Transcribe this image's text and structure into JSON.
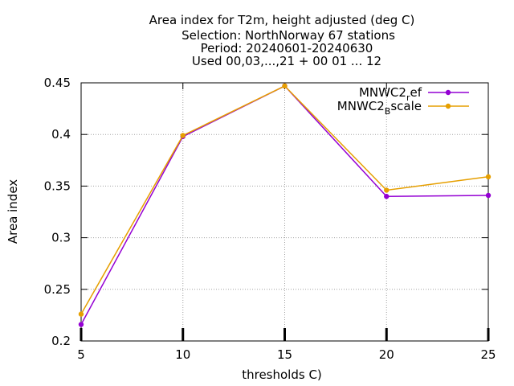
{
  "title_lines": [
    "Area index  for T2m, height adjusted (deg C)",
    "Selection: NorthNorway     67 stations",
    "Period: 20240601-20240630",
    "Used 00,03,...,21 + 00 01 ... 12"
  ],
  "chart_data": {
    "type": "line",
    "title": "Area index  for T2m, height adjusted (deg C)",
    "xlabel": "thresholds C)",
    "ylabel": "Area index",
    "x": [
      5,
      10,
      15,
      20,
      25
    ],
    "xlim": [
      5,
      25
    ],
    "ylim": [
      0.2,
      0.45
    ],
    "x_ticks": [
      "5",
      "10",
      "15",
      "20",
      "25"
    ],
    "y_ticks": [
      "0.2",
      "0.25",
      "0.3",
      "0.35",
      "0.4",
      "0.45"
    ],
    "grid": true,
    "legend_position": "top-right",
    "series": [
      {
        "name_main": "MNWC2",
        "name_sub": "r",
        "name_tail": "ef",
        "color": "#9400d3",
        "values": [
          0.216,
          0.398,
          0.447,
          0.34,
          0.341
        ]
      },
      {
        "name_main": "MNWC2",
        "name_sub": "B",
        "name_tail": "scale",
        "color": "#e69f00",
        "values": [
          0.226,
          0.399,
          0.447,
          0.346,
          0.359
        ]
      }
    ]
  }
}
